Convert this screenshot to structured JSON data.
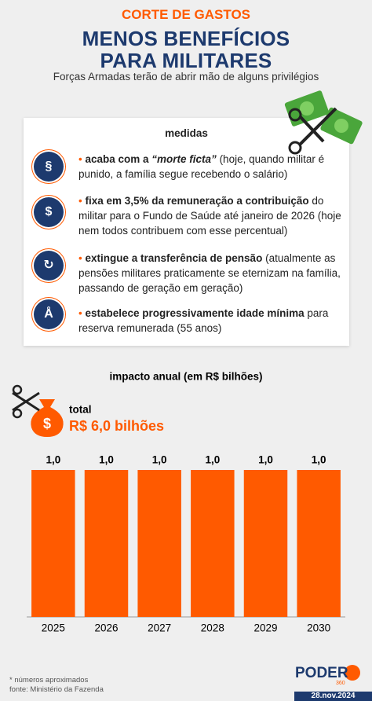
{
  "header": {
    "kicker": "CORTE DE GASTOS",
    "title_lines": [
      "MENOS BENEFÍCIOS",
      "PARA MILITARES"
    ],
    "subtitle": "Forças Armadas terão de abrir mão de alguns privilégios"
  },
  "measures": {
    "title": "medidas",
    "items": [
      {
        "bold": "acaba com a ",
        "italic": "“morte ficta”",
        "text": " (hoje, quando militar é punido, a família segue recebendo o salário)"
      },
      {
        "bold": "fixa em 3,5% da remuneração a contribuição",
        "text": " do militar para o Fundo de Saúde até janeiro de 2026 (hoje nem todos contribuem com esse percentual)"
      },
      {
        "bold": "extingue a transferência de pensão",
        "text": " (atualmente as pensões militares praticamente se eternizam na família, passando de geração em geração)"
      },
      {
        "bold": "estabelece progressivamente idade mínima",
        "text": " para reserva remunerada (55 anos)"
      }
    ]
  },
  "chart_data": {
    "type": "bar",
    "title": "impacto anual (em R$ bilhões)",
    "total_label": "total",
    "total_value": "R$ 6,0 bilhões",
    "categories": [
      "2025",
      "2026",
      "2027",
      "2028",
      "2029",
      "2030"
    ],
    "values": [
      1.0,
      1.0,
      1.0,
      1.0,
      1.0,
      1.0
    ],
    "value_labels": [
      "1,0",
      "1,0",
      "1,0",
      "1,0",
      "1,0",
      "1,0"
    ],
    "color": "#ff5a00",
    "ylim": [
      0,
      1
    ]
  },
  "footer": {
    "note": "* números aproximados",
    "source": "fonte: Ministério da Fazenda",
    "brand": "PODER",
    "brand_sub": "360",
    "date": "28.nov.2024"
  }
}
